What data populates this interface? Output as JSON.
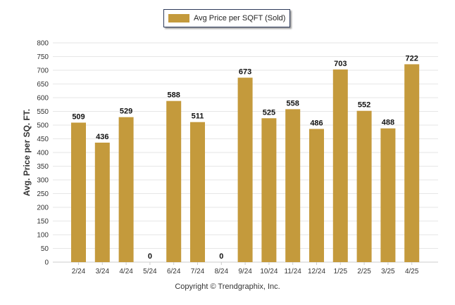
{
  "legend": {
    "label": "Avg Price per SQFT (Sold)"
  },
  "footer": {
    "copyright": "Copyright © Trendgraphix, Inc."
  },
  "colors": {
    "bar": "#c49a3c",
    "grid": "#e6e6e6",
    "axis": "#cccccc",
    "legend_border": "#2d3a5a"
  },
  "chart_data": {
    "type": "bar",
    "categories": [
      "2/24",
      "3/24",
      "4/24",
      "5/24",
      "6/24",
      "7/24",
      "8/24",
      "9/24",
      "10/24",
      "11/24",
      "12/24",
      "1/25",
      "2/25",
      "3/25",
      "4/25"
    ],
    "series": [
      {
        "name": "Avg Price per SQFT (Sold)",
        "values": [
          509,
          436,
          529,
          0,
          588,
          511,
          0,
          673,
          525,
          558,
          486,
          703,
          552,
          488,
          722
        ]
      }
    ],
    "ylabel": "Avg. Price per SQ. FT.",
    "xlabel": "",
    "ylim": [
      0,
      800
    ],
    "yticks": [
      0,
      50,
      100,
      150,
      200,
      250,
      300,
      350,
      400,
      450,
      500,
      550,
      600,
      650,
      700,
      750,
      800
    ],
    "grid": true,
    "legend_position": "top-center",
    "data_labels": true
  }
}
